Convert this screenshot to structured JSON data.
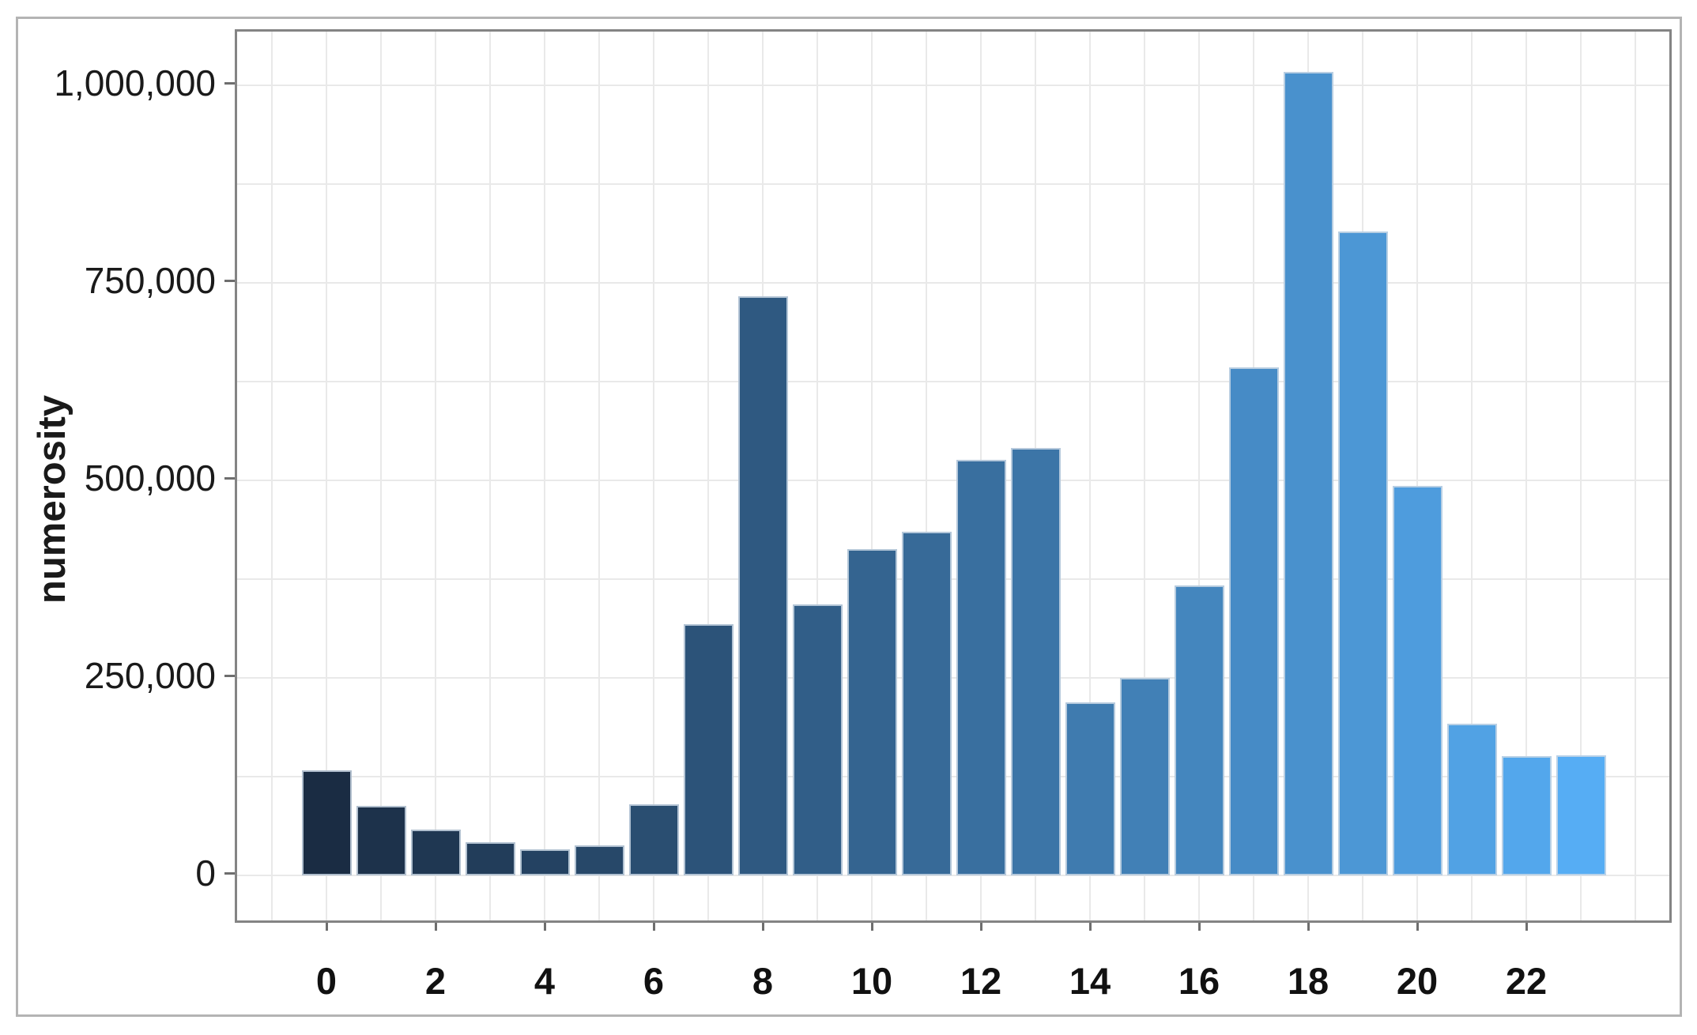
{
  "figure": {
    "background": "#ffffff",
    "outer_border_color": "#b4b4b4",
    "axis_border_color": "#848484",
    "tick_color": "#6e6e6e",
    "gridline_color": "#e9e9e9",
    "text_color": "#1a1a1a"
  },
  "chart_data": {
    "type": "bar",
    "title": "",
    "xlabel": "",
    "ylabel": "numerosity",
    "x": [
      0,
      1,
      2,
      3,
      4,
      5,
      6,
      7,
      8,
      9,
      10,
      11,
      12,
      13,
      14,
      15,
      16,
      17,
      18,
      19,
      20,
      21,
      22,
      23
    ],
    "values": [
      133000,
      88000,
      58000,
      42000,
      33000,
      38000,
      90000,
      318000,
      733000,
      343000,
      413000,
      435000,
      526000,
      541000,
      219000,
      250000,
      367000,
      643000,
      1017000,
      815000,
      493000,
      192000,
      151000,
      152000
    ],
    "bar_colors": [
      "#1a2c43",
      "#1d324b",
      "#1f3752",
      "#223d5a",
      "#244262",
      "#274869",
      "#2a4e71",
      "#2c5379",
      "#2f5981",
      "#315e88",
      "#346490",
      "#376a98",
      "#396f9f",
      "#3c75a7",
      "#3f7baf",
      "#4180b6",
      "#4486be",
      "#468bc6",
      "#4991cd",
      "#4c97d5",
      "#4e9cdd",
      "#51a2e4",
      "#53a7ec",
      "#56adf4"
    ],
    "color_ramp": {
      "start": "#1a2c43",
      "end": "#56adf4"
    },
    "xlim": [
      -1.65,
      24.8
    ],
    "ylim": [
      -57000,
      1068000
    ],
    "y_ticks": [
      0,
      250000,
      500000,
      750000,
      1000000
    ],
    "y_tick_labels": [
      "0",
      "250,000",
      "500,000",
      "750,000",
      "1,000,000"
    ],
    "x_ticks": [
      0,
      2,
      4,
      6,
      8,
      10,
      12,
      14,
      16,
      18,
      20,
      22
    ],
    "x_tick_labels": [
      "0",
      "2",
      "4",
      "6",
      "8",
      "10",
      "12",
      "14",
      "16",
      "18",
      "20",
      "22"
    ],
    "grid": {
      "horizontal_step": 125000,
      "vertical_step": 1,
      "visible": true
    },
    "legend": "none",
    "bar_gap_fraction": 0.09
  }
}
